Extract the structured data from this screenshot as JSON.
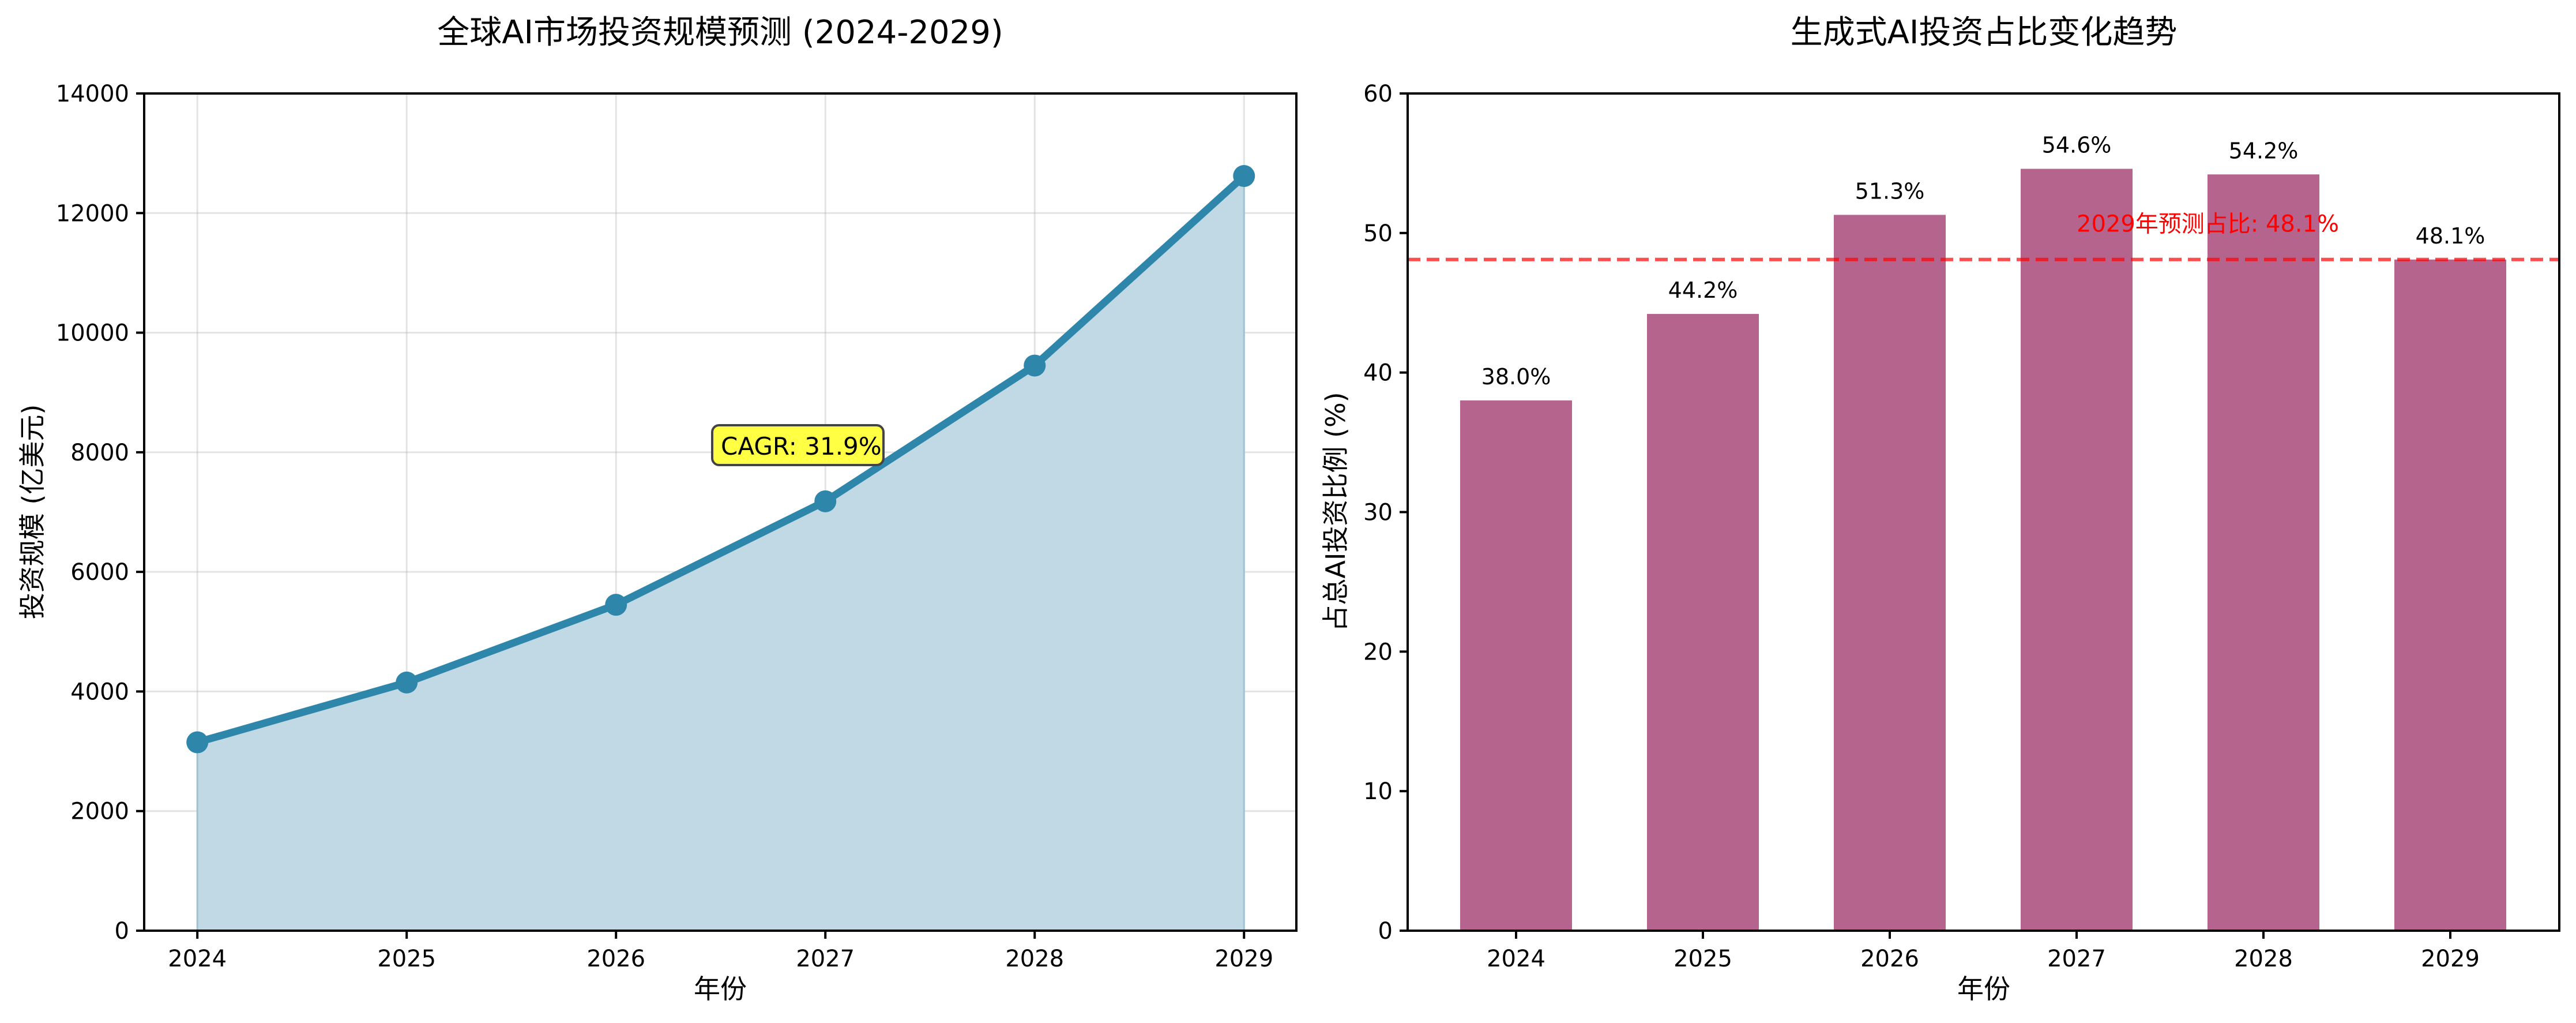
{
  "chart_data": [
    {
      "type": "area",
      "title": "全球AI市场投资规模预测 (2024-2029)",
      "xlabel": "年份",
      "ylabel": "投资规模 (亿美元)",
      "categories": [
        "2024",
        "2025",
        "2026",
        "2027",
        "2028",
        "2029"
      ],
      "x": [
        2024,
        2025,
        2026,
        2027,
        2028,
        2029
      ],
      "series": [
        {
          "name": "投资规模",
          "values": [
            3150,
            4150,
            5450,
            7180,
            9450,
            12620
          ],
          "color": "#2e86ab",
          "fill_color": "#c0d9e4"
        }
      ],
      "ylim": [
        0,
        14000
      ],
      "yticks": [
        0,
        2000,
        4000,
        6000,
        8000,
        10000,
        12000,
        14000
      ],
      "grid": true,
      "annotations": [
        {
          "text": "CAGR: 31.9%",
          "x": 2026.5,
          "y": 8000,
          "box_color": "#ffff44"
        }
      ]
    },
    {
      "type": "bar",
      "title": "生成式AI投资占比变化趋势",
      "xlabel": "年份",
      "ylabel": "占总AI投资比例 (%)",
      "categories": [
        "2024",
        "2025",
        "2026",
        "2027",
        "2028",
        "2029"
      ],
      "values": [
        38.0,
        44.2,
        51.3,
        54.6,
        54.2,
        48.1
      ],
      "data_labels": [
        "38.0%",
        "44.2%",
        "51.3%",
        "54.6%",
        "54.2%",
        "48.1%"
      ],
      "bar_color": "#b5648e",
      "ylim": [
        0,
        60
      ],
      "yticks": [
        0,
        10,
        20,
        30,
        40,
        50,
        60
      ],
      "grid": false,
      "reference_line": {
        "value": 48.1,
        "color": "#ff0000",
        "style": "dashed",
        "label": "2029年预测占比: 48.1%"
      }
    }
  ]
}
